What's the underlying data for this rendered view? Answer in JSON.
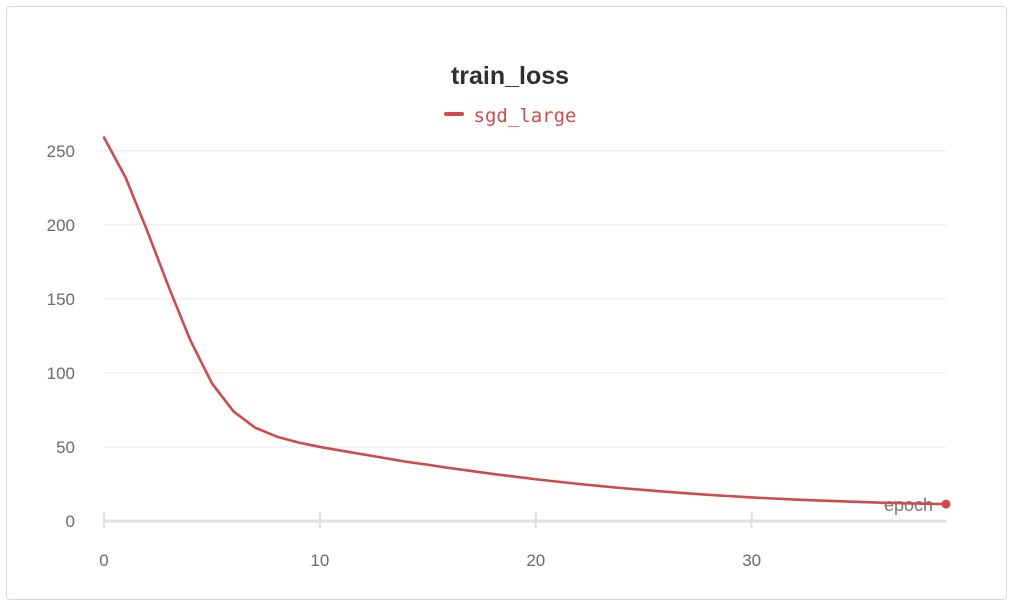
{
  "chart_data": {
    "type": "line",
    "title": "train_loss",
    "xlabel": "epoch",
    "ylabel": "",
    "xlim": [
      0,
      39
    ],
    "ylim": [
      0,
      260
    ],
    "x_ticks": [
      "0",
      "10",
      "20",
      "30"
    ],
    "y_ticks": [
      "0",
      "50",
      "100",
      "150",
      "200",
      "250"
    ],
    "grid": true,
    "legend_position": "top-center",
    "series": [
      {
        "name": "sgd_large",
        "color": "#cf4a4a",
        "x": [
          0,
          1,
          2,
          3,
          4,
          5,
          6,
          7,
          8,
          9,
          10,
          11,
          12,
          13,
          14,
          15,
          16,
          17,
          18,
          19,
          20,
          21,
          22,
          23,
          24,
          25,
          26,
          27,
          28,
          29,
          30,
          31,
          32,
          33,
          34,
          35,
          36,
          37,
          38,
          39
        ],
        "y": [
          259,
          232,
          196,
          158,
          122,
          93,
          74,
          63,
          57,
          53,
          50,
          47.5,
          45,
          42.5,
          40,
          38,
          35.8,
          33.8,
          31.8,
          30,
          28.2,
          26.6,
          25,
          23.6,
          22.2,
          21,
          19.8,
          18.7,
          17.7,
          16.8,
          15.9,
          15.2,
          14.5,
          13.9,
          13.4,
          12.9,
          12.4,
          12,
          11.7,
          11.4
        ]
      }
    ]
  }
}
